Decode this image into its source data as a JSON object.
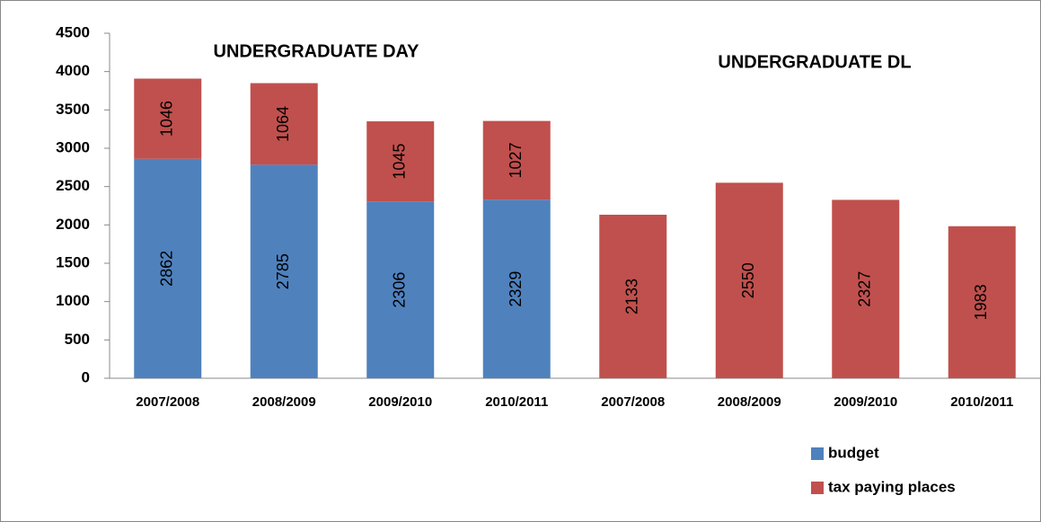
{
  "chart_data": {
    "type": "bar",
    "stacked": true,
    "annotations": [
      "UNDERGRADUATE DAY",
      "UNDERGRADUATE DL"
    ],
    "categories": [
      "2007/2008",
      "2008/2009",
      "2009/2010",
      "2010/2011",
      "2007/2008",
      "2008/2009",
      "2009/2010",
      "2010/2011"
    ],
    "series": [
      {
        "name": "budget",
        "color": "#4f81bd",
        "values": [
          2862,
          2785,
          2306,
          2329,
          null,
          null,
          null,
          null
        ]
      },
      {
        "name": "tax paying places",
        "color": "#c0504d",
        "values": [
          1046,
          1064,
          1045,
          1027,
          2133,
          2550,
          2327,
          1983
        ]
      }
    ],
    "ylim": [
      0,
      4500
    ],
    "yticks": [
      0,
      500,
      1000,
      1500,
      2000,
      2500,
      3000,
      3500,
      4000,
      4500
    ],
    "legend": "bottom-right"
  }
}
